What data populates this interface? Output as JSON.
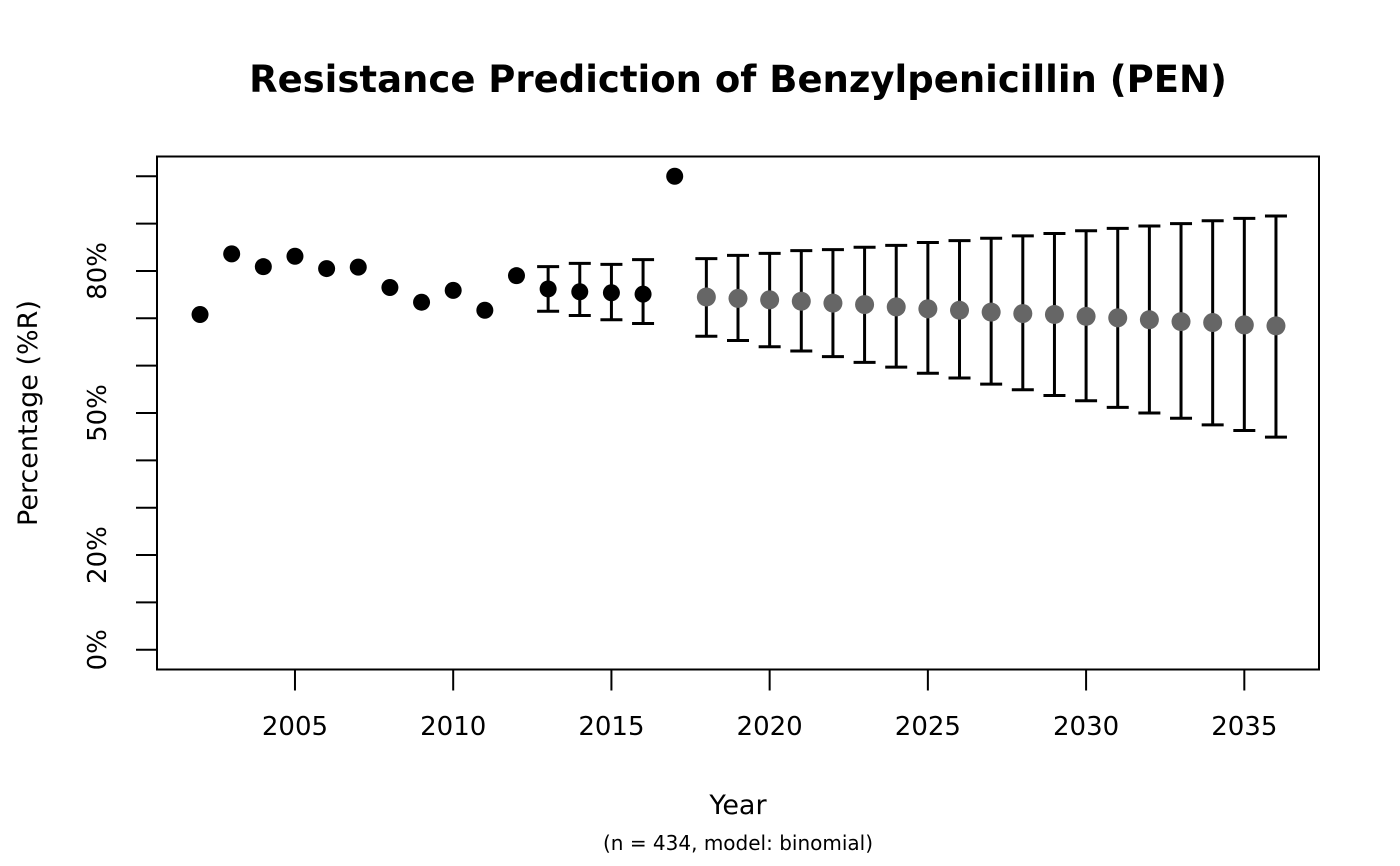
{
  "page": {
    "background": "#ffffff"
  },
  "chart_data": {
    "type": "scatter",
    "title": "Resistance Prediction of Benzylpenicillin (PEN)",
    "xlabel": "Year",
    "xlabel_note": "(n = 434, model: binomial)",
    "ylabel": "Percentage (%R)",
    "xlim": [
      2000.64,
      2037.36
    ],
    "ylim": [
      -4.17,
      104.17
    ],
    "x_ticks": [
      2005,
      2010,
      2015,
      2020,
      2025,
      2030,
      2035
    ],
    "y_ticks": [
      0,
      10,
      20,
      30,
      40,
      50,
      60,
      70,
      80,
      90,
      100
    ],
    "y_tick_labels": {
      "0": "0%",
      "20": "20%",
      "50": "50%",
      "80": "80%"
    },
    "grid": false,
    "legend": "none",
    "colors": {
      "observed": "#000000",
      "predicted": "#666666",
      "error_bar": "#000000",
      "axis": "#000000"
    },
    "series": [
      {
        "name": "observed",
        "color_key": "observed",
        "point_radius": 8.5,
        "points": [
          {
            "year": 2002,
            "value": 70.8
          },
          {
            "year": 2003,
            "value": 83.6
          },
          {
            "year": 2004,
            "value": 80.9
          },
          {
            "year": 2005,
            "value": 83.1
          },
          {
            "year": 2006,
            "value": 80.5
          },
          {
            "year": 2007,
            "value": 80.8
          },
          {
            "year": 2008,
            "value": 76.5
          },
          {
            "year": 2009,
            "value": 73.4
          },
          {
            "year": 2010,
            "value": 75.9
          },
          {
            "year": 2011,
            "value": 71.7
          },
          {
            "year": 2012,
            "value": 79.0
          },
          {
            "year": 2013,
            "value": 76.2,
            "ci_low": 71.5,
            "ci_high": 80.9
          },
          {
            "year": 2014,
            "value": 75.6,
            "ci_low": 70.6,
            "ci_high": 81.6
          },
          {
            "year": 2015,
            "value": 75.4,
            "ci_low": 69.7,
            "ci_high": 81.4
          },
          {
            "year": 2016,
            "value": 75.1,
            "ci_low": 68.9,
            "ci_high": 82.4
          },
          {
            "year": 2017,
            "value": 100.0
          }
        ]
      },
      {
        "name": "predicted",
        "color_key": "predicted",
        "point_radius": 9.5,
        "points": [
          {
            "year": 2018,
            "value": 74.5,
            "ci_low": 66.2,
            "ci_high": 82.6
          },
          {
            "year": 2019,
            "value": 74.2,
            "ci_low": 65.3,
            "ci_high": 83.3
          },
          {
            "year": 2020,
            "value": 73.9,
            "ci_low": 64.0,
            "ci_high": 83.7
          },
          {
            "year": 2021,
            "value": 73.6,
            "ci_low": 63.1,
            "ci_high": 84.3
          },
          {
            "year": 2022,
            "value": 73.2,
            "ci_low": 61.9,
            "ci_high": 84.5
          },
          {
            "year": 2023,
            "value": 72.9,
            "ci_low": 60.7,
            "ci_high": 85.0
          },
          {
            "year": 2024,
            "value": 72.4,
            "ci_low": 59.7,
            "ci_high": 85.4
          },
          {
            "year": 2025,
            "value": 72.0,
            "ci_low": 58.4,
            "ci_high": 86.0
          },
          {
            "year": 2026,
            "value": 71.7,
            "ci_low": 57.4,
            "ci_high": 86.4
          },
          {
            "year": 2027,
            "value": 71.3,
            "ci_low": 56.1,
            "ci_high": 86.9
          },
          {
            "year": 2028,
            "value": 71.0,
            "ci_low": 54.9,
            "ci_high": 87.4
          },
          {
            "year": 2029,
            "value": 70.8,
            "ci_low": 53.7,
            "ci_high": 87.9
          },
          {
            "year": 2030,
            "value": 70.4,
            "ci_low": 52.6,
            "ci_high": 88.5
          },
          {
            "year": 2031,
            "value": 70.1,
            "ci_low": 51.2,
            "ci_high": 89.0
          },
          {
            "year": 2032,
            "value": 69.7,
            "ci_low": 50.0,
            "ci_high": 89.5
          },
          {
            "year": 2033,
            "value": 69.3,
            "ci_low": 48.9,
            "ci_high": 90.0
          },
          {
            "year": 2034,
            "value": 69.1,
            "ci_low": 47.5,
            "ci_high": 90.6
          },
          {
            "year": 2035,
            "value": 68.6,
            "ci_low": 46.3,
            "ci_high": 91.1
          },
          {
            "year": 2036,
            "value": 68.4,
            "ci_low": 44.9,
            "ci_high": 91.6
          }
        ]
      }
    ]
  }
}
